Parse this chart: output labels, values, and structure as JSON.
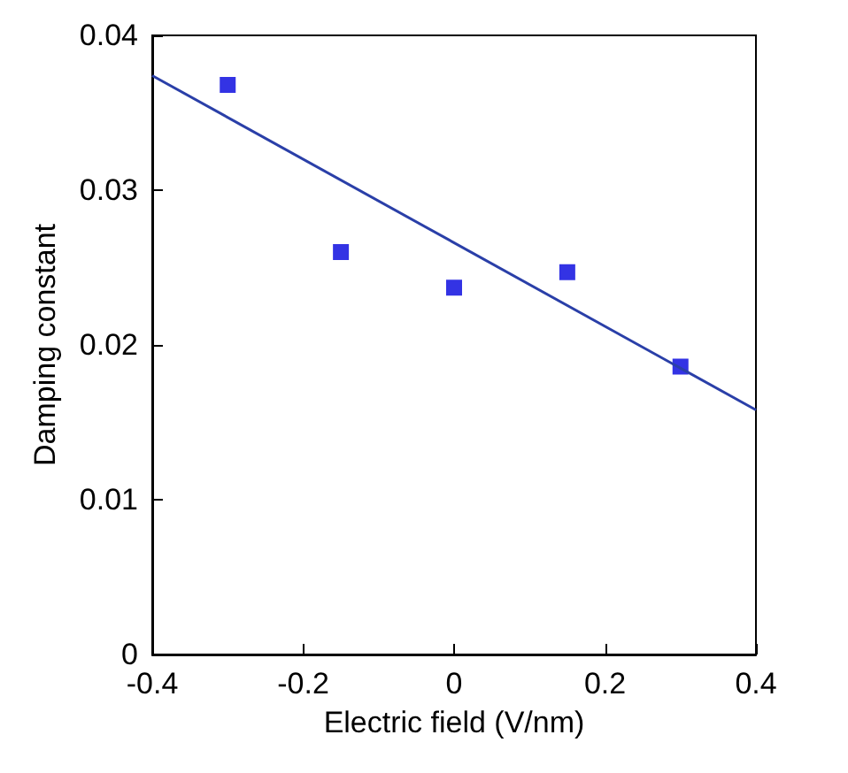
{
  "chart_data": {
    "type": "scatter",
    "xlabel": "Electric field (V/nm)",
    "ylabel": "Damping constant",
    "xlim": [
      -0.4,
      0.4
    ],
    "xticks": [
      -0.4,
      -0.2,
      0,
      0.2,
      0.4
    ],
    "ylim": [
      0,
      0.04
    ],
    "yticks": [
      0,
      0.01,
      0.02,
      0.03,
      0.04
    ],
    "grid": false,
    "series": [
      {
        "color": "#0000dd",
        "marker": "square",
        "x": [
          -0.3,
          -0.15,
          0,
          0.15,
          0.3
        ],
        "values": [
          0.0368,
          0.026,
          0.0237,
          0.0247,
          0.0186
        ]
      },
      {
        "type": "line",
        "color": "#2a3fa8",
        "x": [
          -0.4,
          0.4
        ],
        "values": [
          0.0374,
          0.0158
        ],
        "line_style": "solid"
      }
    ]
  }
}
